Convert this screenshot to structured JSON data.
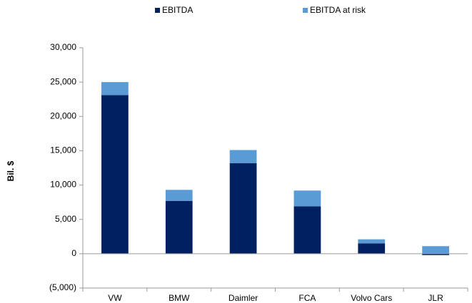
{
  "chart_data": {
    "type": "stacked_bar",
    "y_label": "Bil. $",
    "categories": [
      "VW",
      "BMW",
      "Daimler",
      "FCA",
      "Volvo Cars",
      "JLR"
    ],
    "series": [
      {
        "name": "EBITDA",
        "color": "#002060",
        "values": [
          23100,
          7700,
          13200,
          6900,
          1500,
          -200
        ]
      },
      {
        "name": "EBITDA at risk",
        "color": "#5b9bd5",
        "values": [
          1900,
          1600,
          1900,
          2300,
          600,
          1100
        ]
      }
    ],
    "ylim": [
      -5000,
      30000
    ],
    "yticks": [
      {
        "value": -5000,
        "label": "(5,000)"
      },
      0,
      {
        "value": 5000,
        "label": "5,000"
      },
      {
        "value": 10000,
        "label": "10,000"
      },
      {
        "value": 15000,
        "label": "15,000"
      },
      {
        "value": 20000,
        "label": "20,000"
      },
      {
        "value": 25000,
        "label": "25,000"
      },
      {
        "value": 30000,
        "label": "30,000"
      }
    ],
    "legend": "top"
  }
}
